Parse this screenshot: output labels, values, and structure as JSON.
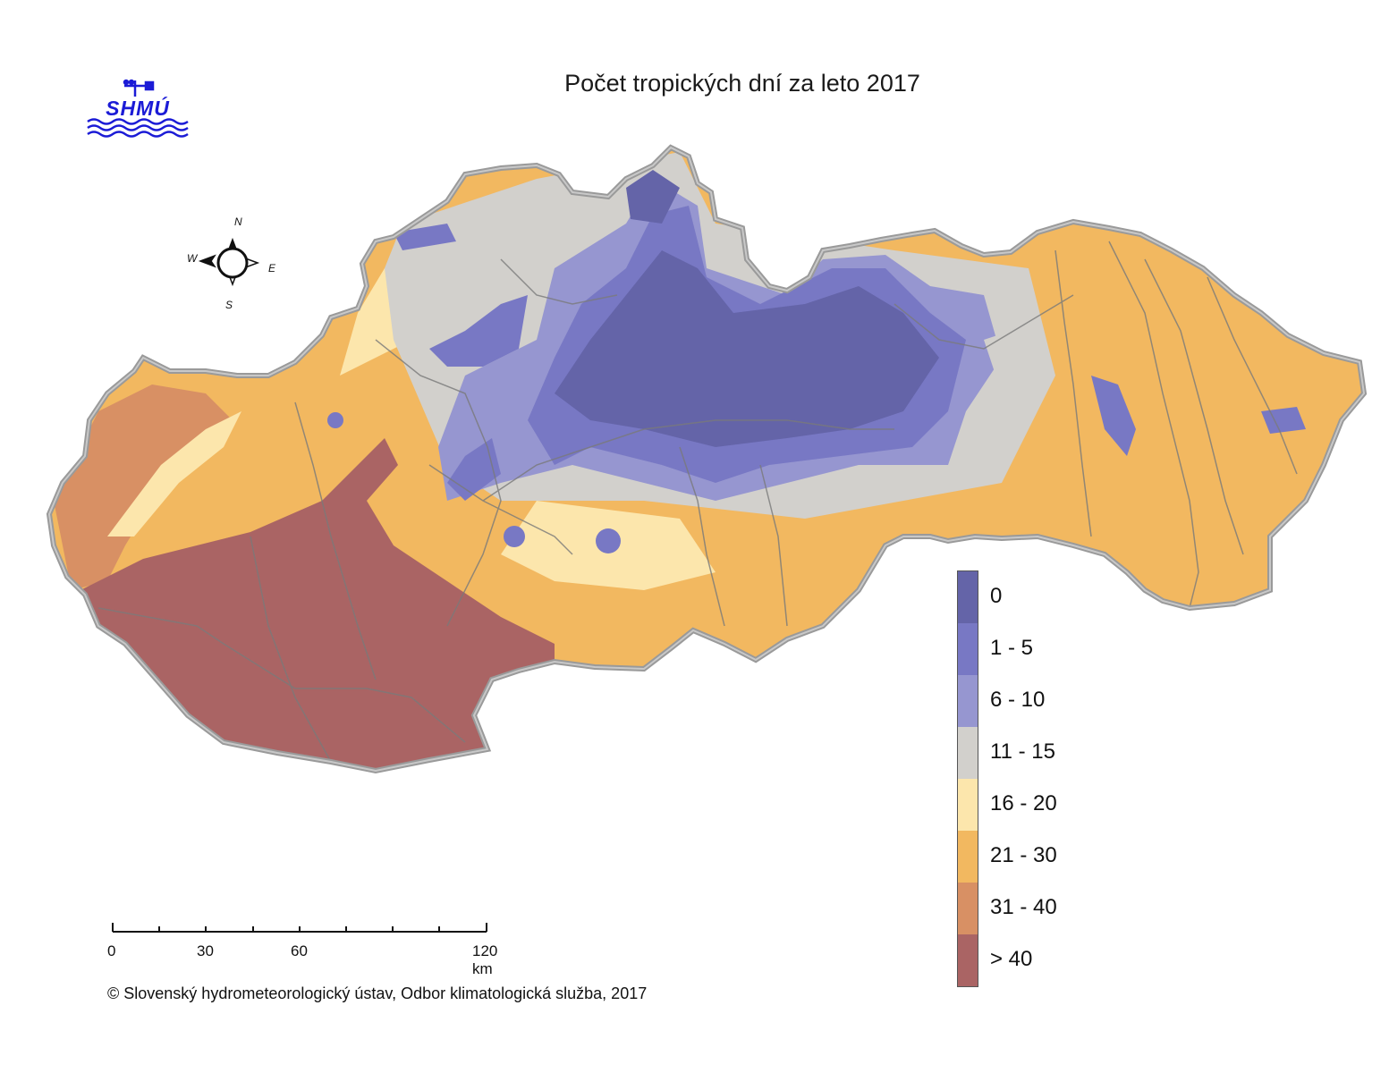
{
  "map": {
    "title": "Počet tropických dní za leto 2017",
    "logo_text": "SHMÚ",
    "compass": {
      "n": "N",
      "e": "E",
      "s": "S",
      "w": "W"
    },
    "legend": [
      {
        "label": "0",
        "color": "#6464a8"
      },
      {
        "label": "1 - 5",
        "color": "#7878c4"
      },
      {
        "label": "6 - 10",
        "color": "#9696d0"
      },
      {
        "label": "11 - 15",
        "color": "#d2d0cc"
      },
      {
        "label": "16 - 20",
        "color": "#fce6ac"
      },
      {
        "label": "21 - 30",
        "color": "#f2b860"
      },
      {
        "label": "31 - 40",
        "color": "#d89064"
      },
      {
        "label": "> 40",
        "color": "#aa6464"
      }
    ],
    "scalebar": {
      "labels": [
        "0",
        "30",
        "60",
        "120 km"
      ]
    },
    "copyright": "© Slovenský hydrometeorologický ústav, Odbor klimatologická služba, 2017"
  }
}
